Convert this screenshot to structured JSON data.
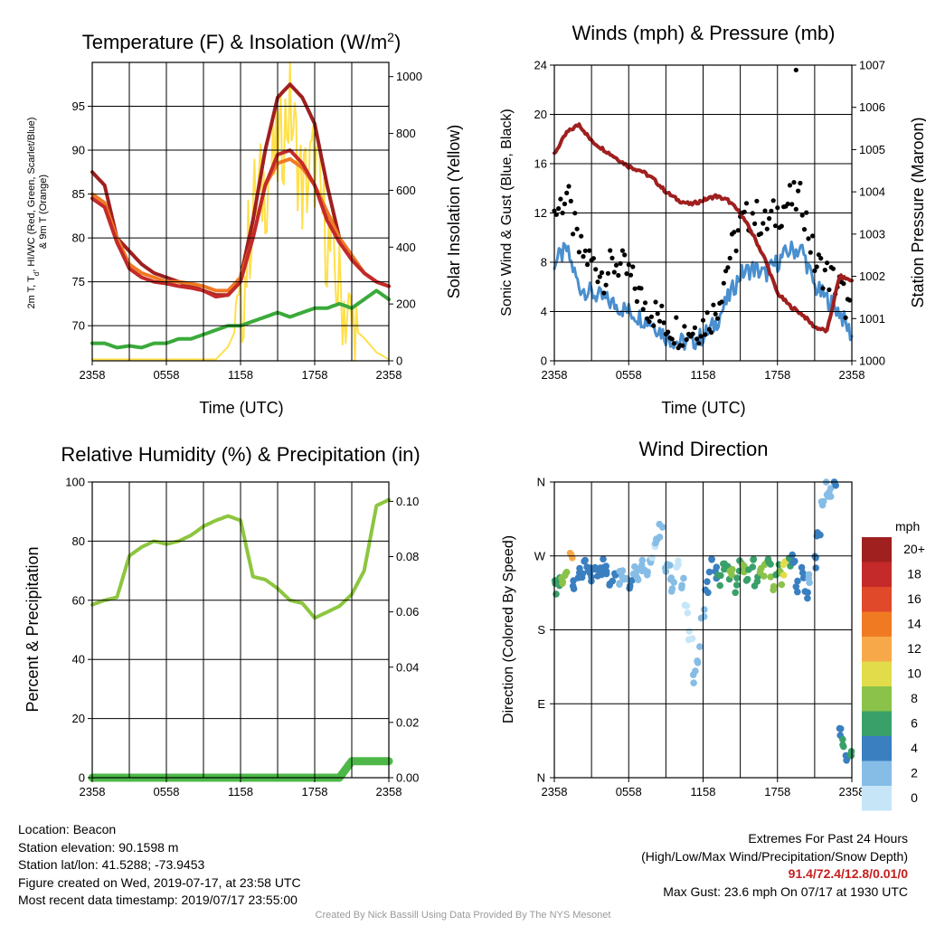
{
  "colors": {
    "maroon": "#a01f1f",
    "red": "#c42a2a",
    "orange": "#f07a22",
    "green": "#3aaa3a",
    "yellow": "#ffe04a",
    "blue": "#4a8fcf",
    "black": "#000000",
    "rh_green": "#8dc63f",
    "precip_green": "#4db848",
    "credit_gray": "#9a9a9a",
    "extremes_red": "#c41e1e"
  },
  "chart_data": [
    {
      "id": "temperature",
      "type": "line",
      "title": "Temperature (F) & Insolation (W/m²)",
      "xlabel": "Time (UTC)",
      "ylabel_left": "2m T, T_d, HI/WC (Red, Green, Scarlet/Blue) & 9m T (Orange)",
      "ylabel_right": "Solar Insolation (Yellow)",
      "x_ticks": [
        "2358",
        "0558",
        "1158",
        "1758",
        "2358"
      ],
      "ylim_left": [
        66,
        100
      ],
      "yticks_left": [
        70,
        75,
        80,
        85,
        90,
        95
      ],
      "ylim_right": [
        0,
        1050
      ],
      "yticks_right": [
        0,
        200,
        400,
        600,
        800,
        1000
      ],
      "x_hours": [
        0,
        1,
        2,
        3,
        4,
        5,
        6,
        7,
        8,
        9,
        10,
        11,
        12,
        13,
        14,
        15,
        16,
        17,
        18,
        19,
        20,
        21,
        22,
        23,
        24
      ],
      "series": [
        {
          "name": "HI/WC",
          "color": "#a01f1f",
          "axis": "left",
          "values": [
            87.5,
            86,
            80,
            78.5,
            77,
            76,
            75.5,
            75,
            74.5,
            74,
            73.5,
            73.5,
            75.5,
            82,
            90,
            96,
            97.5,
            96,
            93,
            86,
            80,
            78,
            76,
            75,
            74.5
          ]
        },
        {
          "name": "9m T",
          "color": "#f07a22",
          "axis": "left",
          "values": [
            85,
            84,
            80,
            77,
            76,
            75.5,
            75,
            75,
            74.8,
            74.5,
            74,
            74,
            75.5,
            80,
            86,
            88.5,
            89,
            88,
            86,
            83,
            80,
            78,
            76,
            75,
            74.5
          ]
        },
        {
          "name": "2m T",
          "color": "#c42a2a",
          "axis": "left",
          "values": [
            84.5,
            83.5,
            79.5,
            76.5,
            75.5,
            75,
            74.8,
            74.5,
            74.3,
            74,
            73.3,
            73.5,
            75,
            80,
            86,
            89.5,
            90,
            88.5,
            86,
            82,
            79.5,
            77.5,
            76,
            75,
            74.5
          ]
        },
        {
          "name": "T_d",
          "color": "#3aaa3a",
          "axis": "left",
          "values": [
            68,
            68,
            67.5,
            67.7,
            67.5,
            68,
            68,
            68.5,
            68.5,
            69,
            69.5,
            70,
            70,
            70.5,
            71,
            71.5,
            71,
            71.5,
            72,
            72,
            72.5,
            72,
            73,
            74,
            73
          ]
        },
        {
          "name": "Solar Insolation",
          "color": "#ffe04a",
          "axis": "right",
          "values": [
            5,
            5,
            5,
            5,
            5,
            5,
            5,
            5,
            5,
            5,
            5,
            50,
            150,
            550,
            620,
            720,
            900,
            600,
            700,
            420,
            250,
            120,
            80,
            30,
            5
          ]
        }
      ]
    },
    {
      "id": "winds",
      "type": "line",
      "title": "Winds (mph) & Pressure (mb)",
      "xlabel": "Time (UTC)",
      "ylabel_left": "Sonic Wind & Gust (Blue, Black)",
      "ylabel_right": "Station Pressure (Maroon)",
      "x_ticks": [
        "2358",
        "0558",
        "1158",
        "1758",
        "2358"
      ],
      "ylim_left": [
        0,
        24
      ],
      "yticks_left": [
        0,
        4,
        8,
        12,
        16,
        20,
        24
      ],
      "ylim_right": [
        1000,
        1007
      ],
      "yticks_right": [
        1000,
        1001,
        1002,
        1003,
        1004,
        1005,
        1006,
        1007
      ],
      "x_hours": [
        0,
        1,
        2,
        3,
        4,
        5,
        6,
        7,
        8,
        9,
        10,
        11,
        12,
        13,
        14,
        15,
        16,
        17,
        18,
        19,
        20,
        21,
        22,
        23,
        24
      ],
      "series": [
        {
          "name": "Sonic Wind",
          "color": "#4a8fcf",
          "axis": "left",
          "values": [
            8,
            9,
            6,
            5.5,
            5,
            4.5,
            4,
            3.5,
            3,
            2,
            1.5,
            1.5,
            2,
            3,
            5,
            7,
            7.5,
            7,
            8,
            9,
            9,
            6,
            5,
            4,
            2
          ]
        },
        {
          "name": "Gust",
          "color": "#000000",
          "axis": "left",
          "values": [
            12,
            13.5,
            9,
            8,
            7,
            8,
            7,
            5,
            4,
            3,
            2.5,
            2.5,
            3,
            4,
            8,
            11,
            12,
            11,
            12,
            13,
            13,
            8,
            7,
            6,
            3.5
          ]
        },
        {
          "name": "Station Pressure",
          "color": "#a01f1f",
          "axis": "right",
          "values": [
            1004.9,
            1005.4,
            1005.6,
            1005.2,
            1005,
            1004.8,
            1004.6,
            1004.5,
            1004.3,
            1004,
            1003.8,
            1003.7,
            1003.8,
            1003.9,
            1003.8,
            1003.5,
            1003,
            1002.4,
            1001.6,
            1001.3,
            1001.1,
            1000.8,
            1000.7,
            1002,
            1001.9
          ]
        }
      ],
      "peak_gust_point": {
        "hour": 19.5,
        "value": 23.6
      }
    },
    {
      "id": "humidity",
      "type": "line",
      "title": "Relative Humidity (%) & Precipitation (in)",
      "xlabel": "",
      "ylabel_left": "Percent & Precipitation",
      "x_ticks": [
        "2358",
        "0558",
        "1158",
        "1758",
        "2358"
      ],
      "ylim_left": [
        0,
        100
      ],
      "yticks_left": [
        0,
        20,
        40,
        60,
        80,
        100
      ],
      "ylim_right": [
        0,
        0.107
      ],
      "yticks_right": [
        "0.00",
        "0.02",
        "0.04",
        "0.06",
        "0.08",
        "0.10"
      ],
      "x_hours": [
        0,
        1,
        2,
        3,
        4,
        5,
        6,
        7,
        8,
        9,
        10,
        11,
        12,
        13,
        14,
        15,
        16,
        17,
        18,
        19,
        20,
        21,
        22,
        23,
        24
      ],
      "series": [
        {
          "name": "Relative Humidity",
          "color": "#8dc63f",
          "axis": "left",
          "values": [
            58.5,
            60,
            61,
            75,
            78,
            80,
            79,
            80,
            82,
            85,
            87,
            88.5,
            87,
            68,
            67,
            64,
            60,
            59,
            54,
            56,
            58,
            62,
            70,
            92,
            94
          ]
        },
        {
          "name": "Precipitation",
          "color": "#4db848",
          "axis": "right",
          "values": [
            0,
            0,
            0,
            0,
            0,
            0,
            0,
            0,
            0,
            0,
            0,
            0,
            0,
            0,
            0,
            0,
            0,
            0,
            0,
            0,
            0,
            0.006,
            0.006,
            0.006,
            0.006
          ]
        }
      ]
    },
    {
      "id": "direction",
      "type": "scatter",
      "title": "Wind Direction",
      "xlabel": "",
      "ylabel_left": "Direction (Colored By Speed)",
      "x_ticks": [
        "2358",
        "0558",
        "1158",
        "1758",
        "2358"
      ],
      "y_ticks": [
        "N",
        "E",
        "S",
        "W",
        "N"
      ],
      "ylim_deg": [
        0,
        360
      ],
      "x_hours": [
        0.1,
        0.4,
        0.7,
        1.0,
        1.3,
        1.6,
        1.9,
        2.2,
        2.5,
        2.8,
        3.1,
        3.4,
        3.7,
        4.0,
        4.3,
        4.6,
        5.0,
        5.3,
        5.6,
        5.9,
        6.2,
        6.5,
        6.8,
        7.1,
        7.4,
        7.7,
        8.0,
        8.3,
        8.6,
        9.0,
        9.3,
        9.6,
        10.0,
        10.3,
        10.6,
        11.0,
        11.3,
        11.6,
        12.0,
        12.3,
        12.6,
        13.0,
        13.3,
        13.6,
        14.0,
        14.3,
        14.6,
        15.0,
        15.3,
        15.6,
        16.0,
        16.3,
        16.6,
        17.0,
        17.3,
        17.6,
        18.0,
        18.3,
        18.6,
        19.0,
        19.3,
        19.6,
        20.0,
        20.3,
        20.6,
        21.0,
        21.3,
        21.6,
        22.0,
        22.3,
        22.6,
        23.0,
        23.3,
        23.6,
        23.9
      ],
      "directions": [
        230,
        235,
        240,
        245,
        275,
        240,
        245,
        250,
        255,
        250,
        245,
        250,
        255,
        260,
        250,
        240,
        255,
        245,
        250,
        245,
        240,
        255,
        250,
        260,
        255,
        265,
        275,
        285,
        300,
        260,
        250,
        230,
        255,
        240,
        210,
        170,
        120,
        150,
        200,
        230,
        260,
        250,
        240,
        255,
        250,
        245,
        235,
        260,
        250,
        245,
        265,
        240,
        250,
        255,
        260,
        235,
        250,
        245,
        255,
        265,
        270,
        230,
        250,
        225,
        240,
        260,
        300,
        330,
        350,
        345,
        360,
        60,
        40,
        20,
        30
      ],
      "speeds": [
        6,
        6,
        7,
        8,
        12,
        4,
        4,
        4,
        4,
        3,
        4,
        4,
        3,
        3,
        4,
        4,
        3,
        2,
        2,
        2,
        3,
        2,
        2,
        2,
        1,
        1,
        0,
        1,
        1,
        2,
        2,
        1,
        0,
        1,
        0,
        0,
        1,
        1,
        2,
        3,
        4,
        4,
        6,
        5,
        6,
        7,
        6,
        5,
        7,
        6,
        6,
        5,
        7,
        8,
        6,
        7,
        6,
        8,
        9,
        5,
        4,
        4,
        3,
        3,
        2,
        4,
        3,
        1,
        2,
        2,
        3,
        4,
        5,
        4,
        6
      ],
      "legend_title": "mph",
      "legend_labels": [
        "20+",
        "18",
        "16",
        "14",
        "12",
        "10",
        "8",
        "6",
        "4",
        "2",
        "0"
      ],
      "legend_colors": [
        "#a01f1f",
        "#c42a2a",
        "#e04a2a",
        "#f07a22",
        "#f7a94a",
        "#e3dc4a",
        "#8bc34a",
        "#3aa06a",
        "#3a7fc0",
        "#86bde6",
        "#c6e6f7"
      ]
    }
  ],
  "info_left": {
    "location": "Location: Beacon",
    "elevation": "Station elevation: 90.1598 m",
    "latlon": "Station lat/lon: 41.5288; -73.9453",
    "created": "Figure created on Wed, 2019-07-17, at 23:58 UTC",
    "recent": "Most recent data timestamp: 2019/07/17 23:55:00"
  },
  "info_right": {
    "header": "Extremes For Past 24 Hours",
    "subheader": "(High/Low/Max Wind/Precipitation/Snow Depth)",
    "values": "91.4/72.4/12.8/0.01/0",
    "gust": "Max Gust: 23.6 mph On 07/17 at 1930 UTC"
  },
  "credit": "Created By Nick Bassill Using Data Provided By The NYS Mesonet"
}
